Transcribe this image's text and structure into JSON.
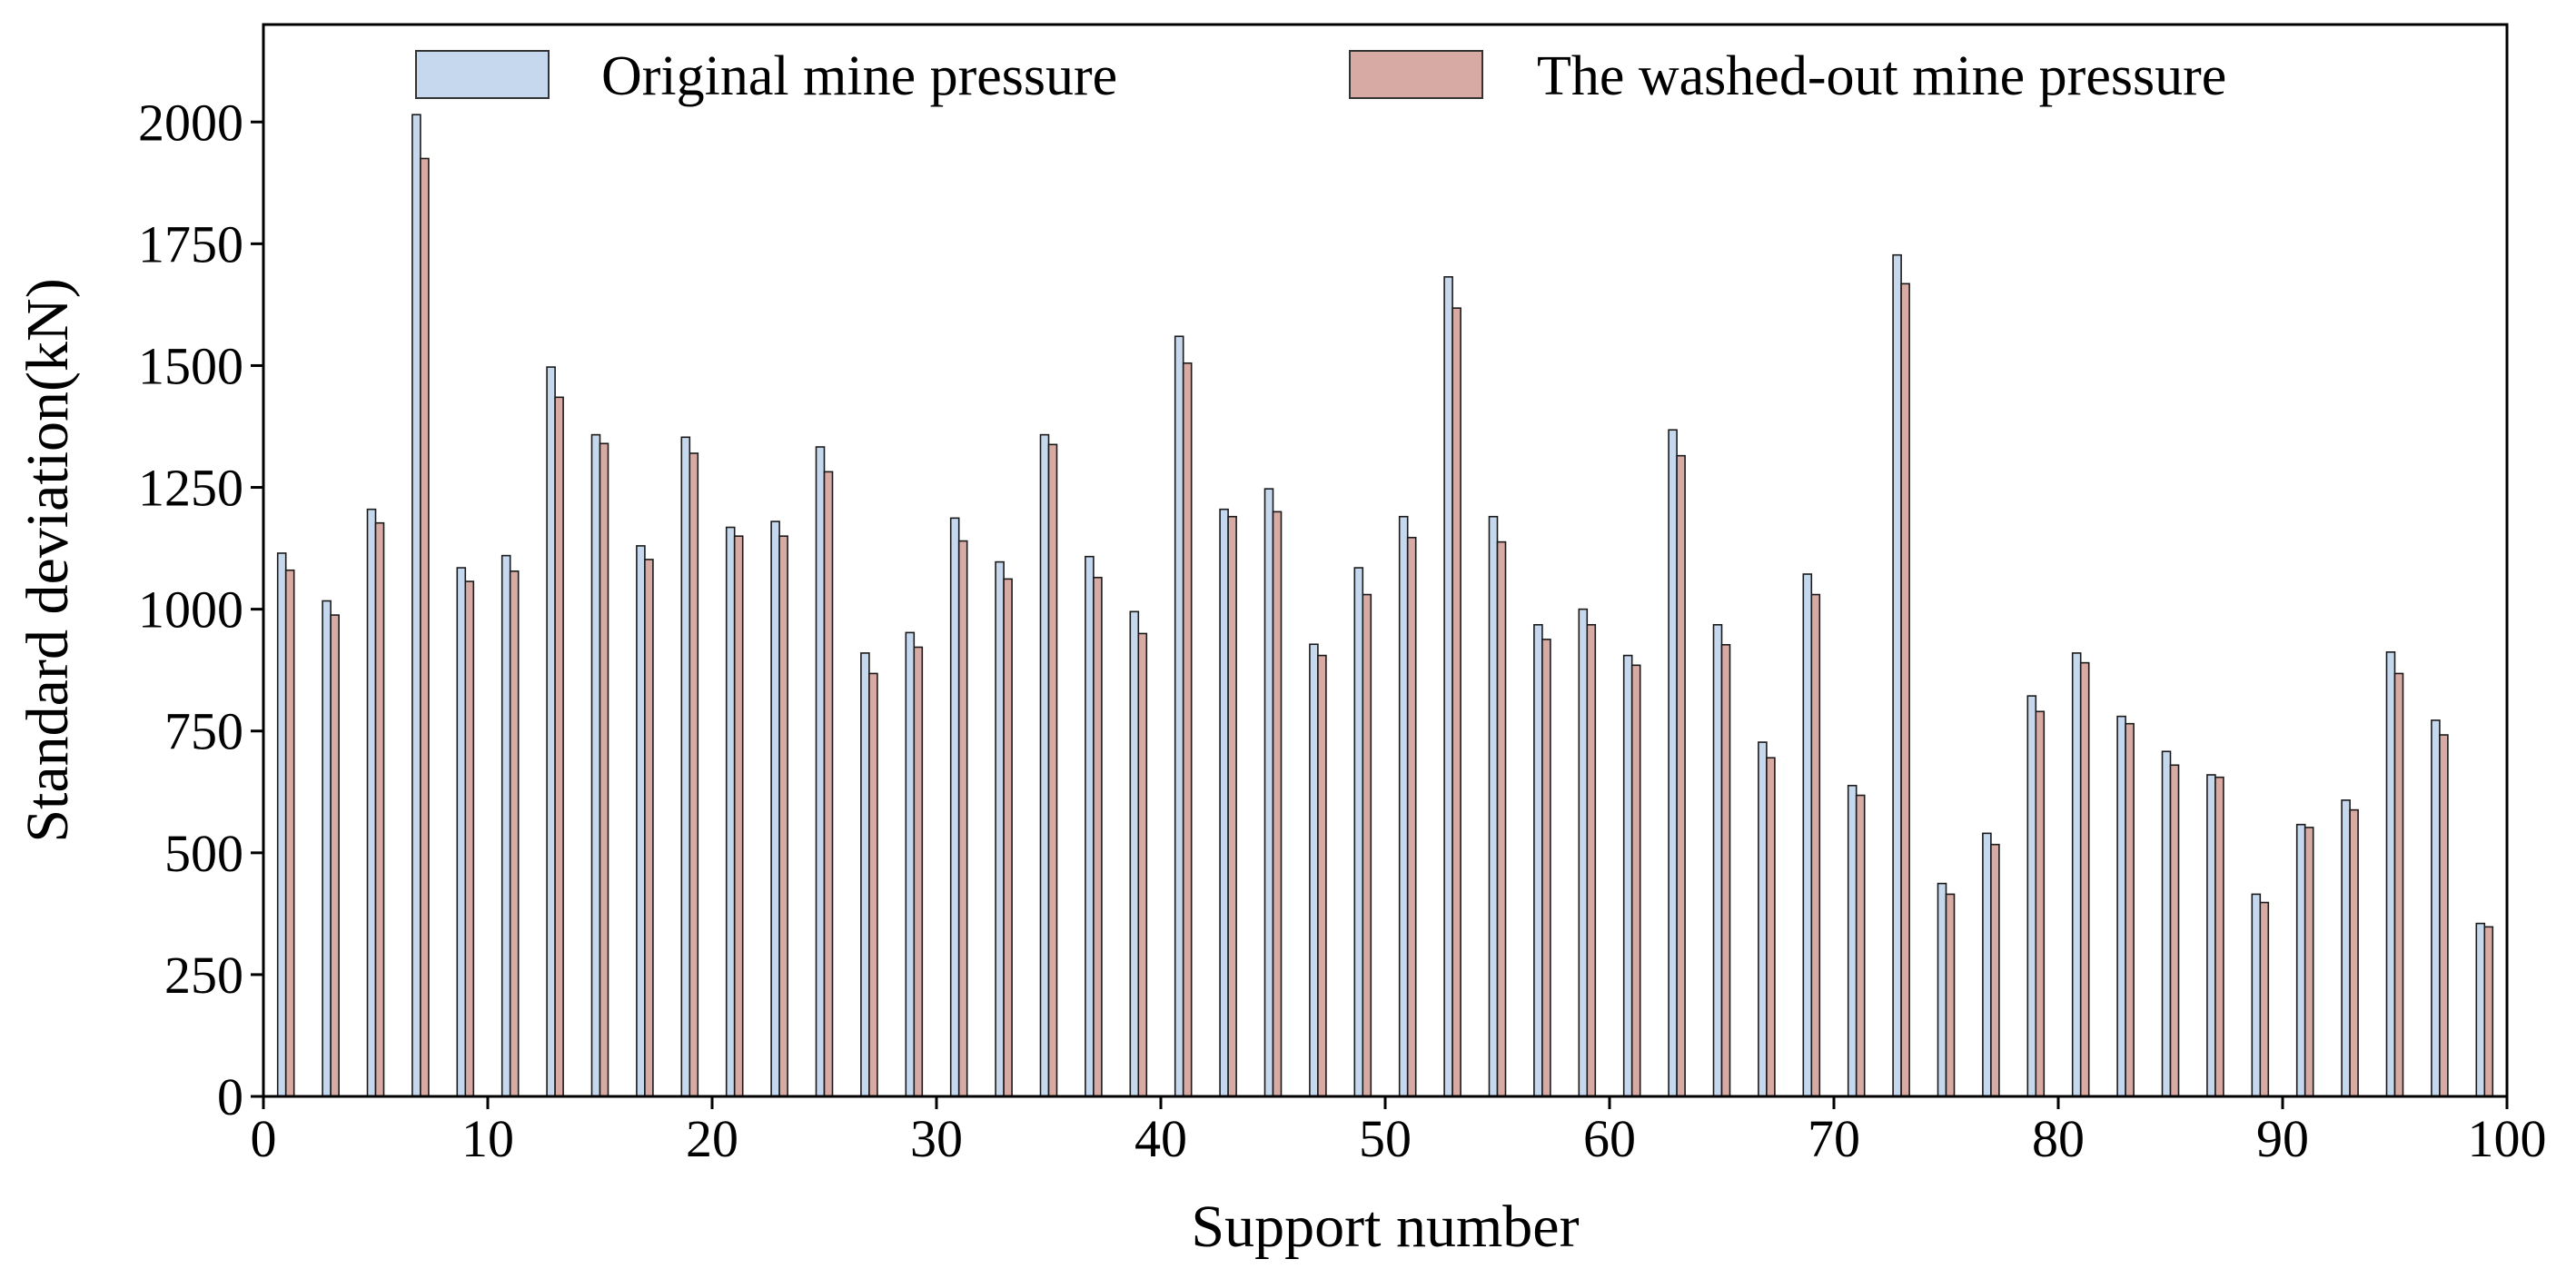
{
  "chart_data": {
    "type": "bar",
    "title": "",
    "xlabel": "Support number",
    "ylabel": "Standard deviation(kN)",
    "xlim": [
      0,
      100
    ],
    "ylim": [
      0,
      2200
    ],
    "xticks": [
      "0",
      "10",
      "20",
      "30",
      "40",
      "50",
      "60",
      "70",
      "80",
      "90",
      "100"
    ],
    "yticks": [
      "0",
      "250",
      "500",
      "750",
      "1000",
      "1250",
      "1500",
      "1750",
      "2000"
    ],
    "grid": false,
    "legend_position": "top",
    "categories": [
      1,
      3,
      5,
      7,
      9,
      11,
      13,
      15,
      17,
      19,
      21,
      23,
      25,
      27,
      29,
      31,
      33,
      35,
      37,
      39,
      41,
      43,
      45,
      47,
      49,
      51,
      53,
      55,
      57,
      59,
      61,
      63,
      65,
      67,
      69,
      71,
      73,
      75,
      77,
      79,
      81,
      83,
      85,
      87,
      89,
      91,
      93,
      95,
      97,
      99
    ],
    "series": [
      {
        "name": "Original mine pressure",
        "color": "#c6d8ee",
        "values": [
          1115,
          1017,
          1205,
          2015,
          1085,
          1110,
          1497,
          1358,
          1130,
          1353,
          1168,
          1180,
          1333,
          910,
          952,
          1187,
          1097,
          1358,
          1108,
          995,
          1560,
          1205,
          1247,
          928,
          1085,
          1190,
          1682,
          1190,
          968,
          1000,
          905,
          1368,
          968,
          727,
          1072,
          638,
          1727,
          437,
          540,
          822,
          910,
          780,
          708,
          660,
          415,
          558,
          608,
          912,
          772,
          355
        ]
      },
      {
        "name": "The washed-out mine pressure",
        "color": "#d8aaa4",
        "values": [
          1080,
          988,
          1177,
          1925,
          1057,
          1078,
          1435,
          1340,
          1102,
          1320,
          1150,
          1150,
          1282,
          868,
          922,
          1140,
          1062,
          1338,
          1065,
          950,
          1505,
          1190,
          1200,
          905,
          1030,
          1147,
          1618,
          1138,
          938,
          968,
          885,
          1315,
          927,
          695,
          1030,
          618,
          1668,
          415,
          517,
          790,
          890,
          765,
          680,
          655,
          398,
          552,
          588,
          868,
          742,
          348
        ]
      }
    ]
  }
}
